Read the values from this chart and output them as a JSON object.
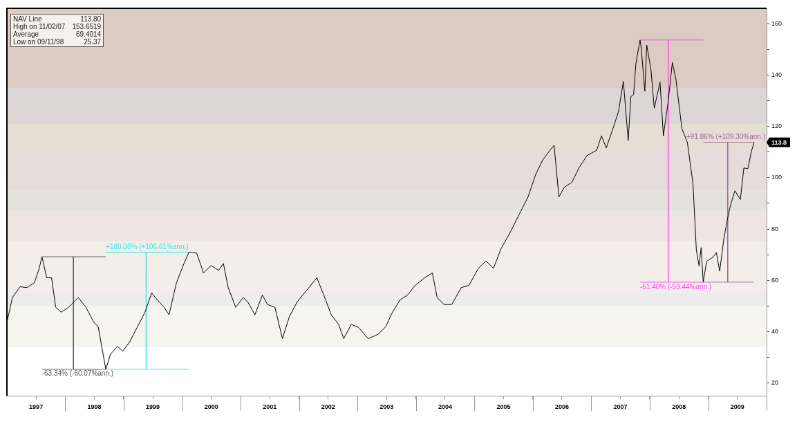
{
  "chart_data": {
    "type": "line",
    "marker": "none",
    "grid": false,
    "xlim": [
      "1997-01-01",
      "2010-01-01"
    ],
    "xticks": [
      {
        "value": "1997-07-02",
        "label": "1997"
      },
      {
        "value": "1998-01-01",
        "label": null
      },
      {
        "value": "1998-07-02",
        "label": "1998"
      },
      {
        "value": "1999-01-01",
        "label": null
      },
      {
        "value": "1999-07-02",
        "label": "1999"
      },
      {
        "value": "2000-01-01",
        "label": null
      },
      {
        "value": "2000-07-02",
        "label": "2000"
      },
      {
        "value": "2001-01-01",
        "label": null
      },
      {
        "value": "2001-07-02",
        "label": "2001"
      },
      {
        "value": "2002-01-01",
        "label": null
      },
      {
        "value": "2002-07-02",
        "label": "2002"
      },
      {
        "value": "2003-01-01",
        "label": null
      },
      {
        "value": "2003-07-02",
        "label": "2003"
      },
      {
        "value": "2004-01-01",
        "label": null
      },
      {
        "value": "2004-07-02",
        "label": "2004"
      },
      {
        "value": "2005-01-01",
        "label": null
      },
      {
        "value": "2005-07-02",
        "label": "2005"
      },
      {
        "value": "2006-01-01",
        "label": null
      },
      {
        "value": "2006-07-02",
        "label": "2006"
      },
      {
        "value": "2007-01-01",
        "label": null
      },
      {
        "value": "2007-07-02",
        "label": "2007"
      },
      {
        "value": "2008-01-01",
        "label": null
      },
      {
        "value": "2008-07-02",
        "label": "2008"
      },
      {
        "value": "2009-01-01",
        "label": null
      },
      {
        "value": "2009-07-02",
        "label": "2009"
      },
      {
        "value": "2010-01-01",
        "label": null
      }
    ],
    "ylim": [
      15,
      166
    ],
    "yticks": [
      20,
      {
        "value": 30,
        "label": null
      },
      40,
      {
        "value": 50,
        "label": null
      },
      60,
      {
        "value": 70,
        "label": null
      },
      80,
      {
        "value": 90,
        "label": null
      },
      100,
      {
        "value": 110,
        "label": null
      },
      120,
      {
        "value": 130,
        "label": null
      },
      140,
      {
        "value": 150,
        "label": null
      },
      160
    ],
    "bands": [
      {
        "axis": "y",
        "from": 135,
        "to": 166,
        "color": "#dccbc2"
      },
      {
        "axis": "y",
        "from": 121,
        "to": 135,
        "color": "#ddd5d6"
      },
      {
        "axis": "y",
        "from": 111,
        "to": 121,
        "color": "#e6ddd5"
      },
      {
        "axis": "y",
        "from": 95,
        "to": 111,
        "color": "#e6dcdc"
      },
      {
        "axis": "y",
        "from": 87,
        "to": 95,
        "color": "#e4e3db"
      },
      {
        "axis": "y",
        "from": 75,
        "to": 87,
        "color": "#eee4e4"
      },
      {
        "axis": "y",
        "from": 62,
        "to": 75,
        "color": "#f5ede8"
      },
      {
        "axis": "y",
        "from": 55,
        "to": 62,
        "color": "#f5ecec"
      },
      {
        "axis": "y",
        "from": 50,
        "to": 55,
        "color": "#ececec"
      },
      {
        "axis": "y",
        "from": 34,
        "to": 50,
        "color": "#f5f4ee"
      }
    ],
    "series": [
      {
        "color": "#000000",
        "x": [
          "1997-01-05",
          "1997-02-04",
          "1997-03-24",
          "1997-05-06",
          "1997-06-22",
          "1997-07-22",
          "1997-08-08",
          "1997-09-07",
          "1997-10-07",
          "1997-11-02",
          "1997-12-06",
          "1998-01-22",
          "1998-02-21",
          "1998-03-23",
          "1998-05-10",
          "1998-06-26",
          "1998-07-26",
          "1998-09-11",
          "1998-10-11",
          "1998-11-23",
          "1998-12-27",
          "1999-02-08",
          "1999-03-27",
          "1999-05-14",
          "1999-06-25",
          "1999-07-30",
          "1999-09-11",
          "1999-10-11",
          "1999-11-27",
          "2000-01-13",
          "2000-02-13",
          "2000-04-01",
          "2000-05-14",
          "2000-06-30",
          "2000-08-16",
          "2000-09-15",
          "2000-10-15",
          "2000-12-01",
          "2001-01-17",
          "2001-02-16",
          "2001-03-31",
          "2001-05-17",
          "2001-06-17",
          "2001-08-03",
          "2001-09-19",
          "2001-11-01",
          "2001-12-18",
          "2002-02-04",
          "2002-04-22",
          "2002-06-04",
          "2002-07-21",
          "2002-09-06",
          "2002-10-07",
          "2002-11-23",
          "2003-01-05",
          "2003-03-10",
          "2003-05-10",
          "2003-06-25",
          "2003-08-08",
          "2003-09-24",
          "2003-11-10",
          "2003-12-27",
          "2004-02-25",
          "2004-04-13",
          "2004-05-13",
          "2004-06-25",
          "2004-08-12",
          "2004-10-11",
          "2004-11-27",
          "2005-01-26",
          "2005-03-14",
          "2005-04-30",
          "2005-06-17",
          "2005-08-16",
          "2005-10-15",
          "2005-12-02",
          "2006-01-18",
          "2006-03-02",
          "2006-04-18",
          "2006-05-14",
          "2006-06-13",
          "2006-07-17",
          "2006-09-02",
          "2006-10-19",
          "2006-12-05",
          "2007-02-04",
          "2007-03-06",
          "2007-04-05",
          "2007-05-22",
          "2007-06-21",
          "2007-07-21",
          "2007-08-20",
          "2007-09-06",
          "2007-09-23",
          "2007-10-07",
          "2007-11-02",
          "2007-11-10",
          "2007-12-02",
          "2007-12-14",
          "2008-01-09",
          "2008-01-30",
          "2008-03-06",
          "2008-03-27",
          "2008-04-26",
          "2008-05-22",
          "2008-06-13",
          "2008-07-21",
          "2008-08-24",
          "2008-09-28",
          "2008-10-19",
          "2008-11-05",
          "2008-11-18",
          "2008-12-01",
          "2008-12-22",
          "2009-01-30",
          "2009-02-21",
          "2009-03-14",
          "2009-04-09",
          "2009-04-30",
          "2009-05-22",
          "2009-06-17",
          "2009-07-21",
          "2009-08-12",
          "2009-09-06",
          "2009-09-28",
          "2009-10-15"
        ],
        "values": [
          44.7,
          53.3,
          57.5,
          57.2,
          59.1,
          64.7,
          69.2,
          61.0,
          61.0,
          49.5,
          47.6,
          49.5,
          51.4,
          53.3,
          49.5,
          43.9,
          41.8,
          25.37,
          31.3,
          34.3,
          32.4,
          36.1,
          41.8,
          47.6,
          55.1,
          52.4,
          49.5,
          46.6,
          59.1,
          66.6,
          71.0,
          70.6,
          62.9,
          65.8,
          63.9,
          66.6,
          57.2,
          49.5,
          53.3,
          51.4,
          46.6,
          54.3,
          50.6,
          49.5,
          37.3,
          45.8,
          51.4,
          55.1,
          61.0,
          54.3,
          46.6,
          42.8,
          37.3,
          42.8,
          41.8,
          37.3,
          39.0,
          41.8,
          47.6,
          52.4,
          54.3,
          58.0,
          61.0,
          62.9,
          53.3,
          50.6,
          50.6,
          57.2,
          58.0,
          64.7,
          67.6,
          64.7,
          72.4,
          79.1,
          86.6,
          92.5,
          101.1,
          106.7,
          110.7,
          112.6,
          92.5,
          96.3,
          98.2,
          104.1,
          108.6,
          110.7,
          116.3,
          111.6,
          120.1,
          126.0,
          137.5,
          114.5,
          131.6,
          132.4,
          144.4,
          153.65,
          150.3,
          133.7,
          151.7,
          142.3,
          127.1,
          137.2,
          116.3,
          129.7,
          144.9,
          138.5,
          119.0,
          113.7,
          97.6,
          71.8,
          65.6,
          72.8,
          59.3,
          67.4,
          69.0,
          70.8,
          63.6,
          76.2,
          83.4,
          89.6,
          94.9,
          91.5,
          103.8,
          103.5,
          110.2,
          113.8
        ]
      },
      {
        "color": "#555555",
        "x": [
          "1997-08-08",
          "1998-09-11"
        ],
        "values": [
          69.2,
          69.2
        ]
      },
      {
        "color": "#555555",
        "x": [
          "1998-02-21",
          "1998-02-21"
        ],
        "values": [
          69.2,
          25.37
        ]
      },
      {
        "color": "#555555",
        "x": [
          "1997-08-08",
          "1998-09-11"
        ],
        "values": [
          25.37,
          25.37
        ]
      },
      {
        "color": "#33e5f0",
        "x": [
          "1998-09-11",
          "2000-02-13"
        ],
        "values": [
          71.0,
          71.0
        ]
      },
      {
        "color": "#33e5f0",
        "x": [
          "1999-05-21",
          "1999-05-21"
        ],
        "values": [
          71.0,
          25.37
        ]
      },
      {
        "color": "#33e5f0",
        "x": [
          "1998-09-11",
          "2000-02-13"
        ],
        "values": [
          25.37,
          25.37
        ]
      },
      {
        "color": "#ff44ee",
        "x": [
          "2007-11-02",
          "2008-12-01"
        ],
        "values": [
          153.65,
          153.65
        ]
      },
      {
        "color": "#ff44ee",
        "x": [
          "2008-04-26",
          "2008-04-26"
        ],
        "values": [
          153.65,
          59.3
        ]
      },
      {
        "color": "#ff44ee",
        "x": [
          "2007-11-02",
          "2008-12-01"
        ],
        "values": [
          59.3,
          59.3
        ]
      },
      {
        "color": "#9a6a9a",
        "x": [
          "2008-12-01",
          "2009-10-15"
        ],
        "values": [
          113.8,
          113.8
        ]
      },
      {
        "color": "#9a6a9a",
        "x": [
          "2009-05-03",
          "2009-05-03"
        ],
        "values": [
          113.8,
          59.3
        ]
      },
      {
        "color": "#9a6a9a",
        "x": [
          "2008-12-01",
          "2009-10-15"
        ],
        "values": [
          59.3,
          59.3
        ]
      }
    ],
    "annotations": [
      {
        "text": "-63.34% (-60.07%ann.)",
        "x": "1997-08-08",
        "y": 25.37
      },
      {
        "text": "+180.06% (+106.61%ann.)",
        "x": "1998-09-11",
        "y": 71.0
      },
      {
        "text": "-61.40% (-59.44%ann.)",
        "x": "2007-11-02",
        "y": 59.3
      },
      {
        "text": "+91.86% (+109.30%ann.)",
        "x": "2008-12-01",
        "y": 113.8
      },
      {
        "text": "113.8",
        "y": 113.8
      },
      "NAV Line",
      "113.80",
      "High on  11/02/07",
      "153.6519",
      "Average",
      "69.4014",
      "Low on  09/11/98",
      "25.37"
    ]
  }
}
